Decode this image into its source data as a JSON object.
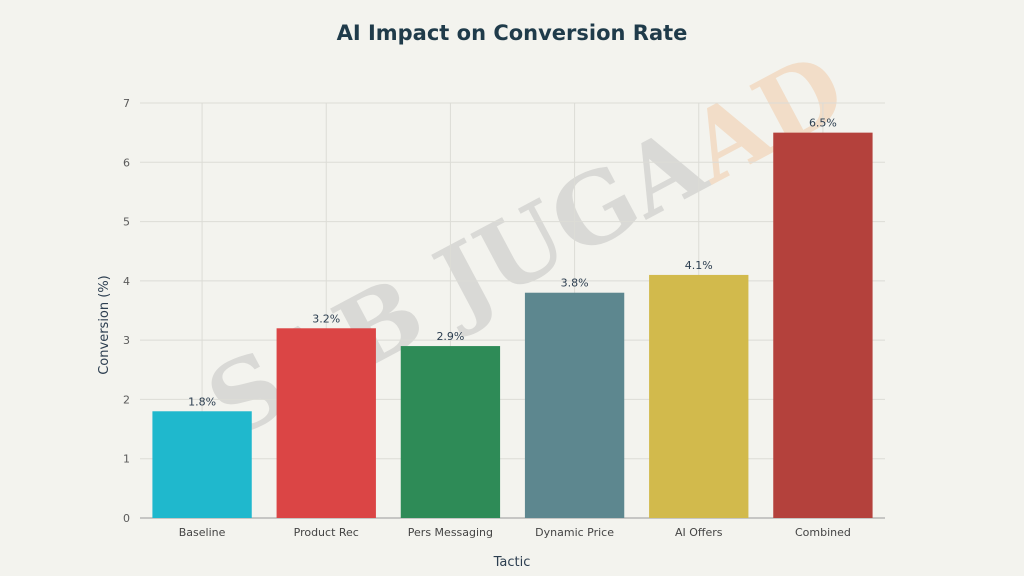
{
  "chart_data": {
    "type": "bar",
    "title": "AI Impact on Conversion Rate",
    "xlabel": "Tactic",
    "ylabel": "Conversion (%)",
    "ylim": [
      0,
      7
    ],
    "yticks": [
      0,
      1,
      2,
      3,
      4,
      5,
      6,
      7
    ],
    "categories": [
      "Baseline",
      "Product Rec",
      "Pers Messaging",
      "Dynamic Price",
      "AI Offers",
      "Combined"
    ],
    "values": [
      1.8,
      3.2,
      2.9,
      3.8,
      4.1,
      6.5
    ],
    "data_labels": [
      "1.8%",
      "3.2%",
      "2.9%",
      "3.8%",
      "4.1%",
      "6.5%"
    ],
    "colors": [
      "#1fb8cd",
      "#db4545",
      "#2e8b57",
      "#5d878f",
      "#d2ba4c",
      "#b4413c"
    ],
    "grid": true,
    "legend": "none"
  },
  "watermark": {
    "text_main": "SAB JUGA",
    "text_accent": "AD",
    "color_main": "#b0b0b0",
    "color_accent": "#f0b27a"
  }
}
